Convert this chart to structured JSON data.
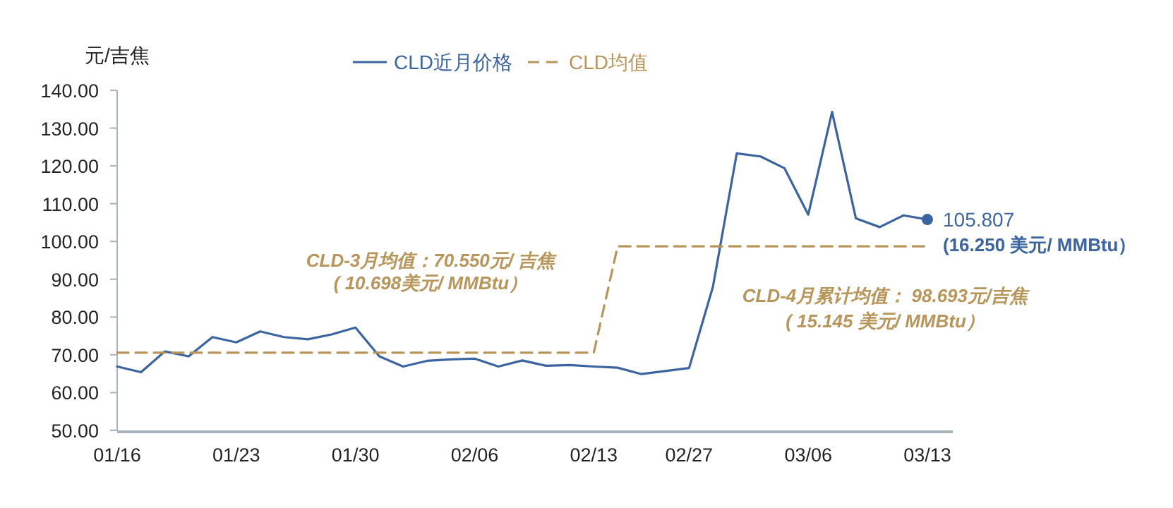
{
  "chart_data": {
    "type": "line",
    "ylabel": "元/吉焦",
    "categories": [
      "01/16",
      null,
      null,
      null,
      null,
      "01/23",
      null,
      null,
      null,
      null,
      "01/30",
      null,
      null,
      null,
      null,
      "02/06",
      null,
      null,
      null,
      null,
      "02/13",
      null,
      null,
      null,
      "02/27",
      null,
      null,
      null,
      null,
      "03/06",
      null,
      null,
      null,
      null,
      "03/13"
    ],
    "series": [
      {
        "name": "CLD近月价格",
        "color": "#3b64a0",
        "line_style": "solid",
        "values": [
          66.9,
          65.4,
          70.9,
          69.6,
          74.7,
          73.3,
          76.2,
          74.7,
          74.1,
          75.4,
          77.2,
          69.6,
          66.9,
          68.4,
          68.8,
          69.0,
          66.9,
          68.5,
          67.1,
          67.3,
          66.9,
          66.6,
          64.9,
          65.7,
          66.5,
          88.0,
          123.3,
          122.5,
          119.4,
          107.1,
          134.3,
          106.1,
          103.8,
          106.9,
          105.807
        ],
        "value_labels": [
          null,
          null,
          null,
          null,
          null,
          null,
          null,
          null,
          null,
          null,
          null,
          null,
          null,
          null,
          null,
          null,
          null,
          null,
          null,
          null,
          null,
          null,
          null,
          null,
          null,
          null,
          null,
          null,
          null,
          null,
          null,
          null,
          null,
          null,
          "105.807"
        ]
      },
      {
        "name": "CLD均值",
        "color": "#b8955a",
        "line_style": "dashed",
        "values": [
          70.55,
          70.55,
          70.55,
          70.55,
          70.55,
          70.55,
          70.55,
          70.55,
          70.55,
          70.55,
          70.55,
          70.55,
          70.55,
          70.55,
          70.55,
          70.55,
          70.55,
          70.55,
          70.55,
          70.55,
          70.55,
          98.693,
          98.693,
          98.693,
          98.693,
          98.693,
          98.693,
          98.693,
          98.693,
          98.693,
          98.693,
          98.693,
          98.693,
          98.693,
          98.693
        ]
      }
    ],
    "ylim": [
      50,
      140
    ],
    "yticks": [
      {
        "value": 50,
        "label": "50.00"
      },
      {
        "value": 60,
        "label": "60.00"
      },
      {
        "value": 70,
        "label": "70.00"
      },
      {
        "value": 80,
        "label": "80.00"
      },
      {
        "value": 90,
        "label": "90.00"
      },
      {
        "value": 100,
        "label": "100.00"
      },
      {
        "value": 110,
        "label": "110.00"
      },
      {
        "value": 120,
        "label": "120.00"
      },
      {
        "value": 130,
        "label": "130.00"
      },
      {
        "value": 140,
        "label": "140.00"
      }
    ],
    "grid": false,
    "legend": "top",
    "annotations": [
      "CLD-3月均值：70.550元/ 吉焦",
      "( 10.698美元/ MMBtu）",
      "CLD-4月累计均值： 98.693元/吉焦",
      "( 15.145 美元/ MMBtu）",
      "(16.250 美元/ MMBtu）"
    ]
  }
}
